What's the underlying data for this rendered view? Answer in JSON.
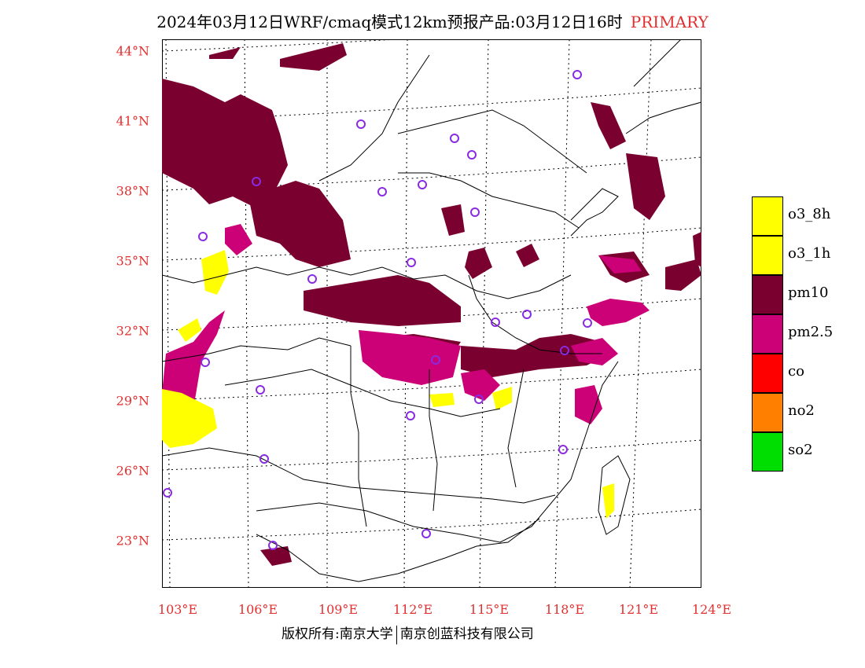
{
  "title": {
    "main": "2024年03月12日WRF/cmaq模式12km预报产品:03月12日16时",
    "product": "PRIMARY"
  },
  "lat_labels": [
    "44°N",
    "41°N",
    "38°N",
    "35°N",
    "32°N",
    "29°N",
    "26°N",
    "23°N"
  ],
  "lon_labels": [
    "103°E",
    "106°E",
    "109°E",
    "112°E",
    "115°E",
    "118°E",
    "121°E",
    "124°E"
  ],
  "legend": [
    {
      "label": "o3_8h",
      "color": "#ffff00"
    },
    {
      "label": "o3_1h",
      "color": "#ffff00"
    },
    {
      "label": "pm10",
      "color": "#7a0030"
    },
    {
      "label": "pm2.5",
      "color": "#cc0077"
    },
    {
      "label": "co",
      "color": "#ff0000"
    },
    {
      "label": "no2",
      "color": "#ff8000"
    },
    {
      "label": "so2",
      "color": "#00dd00"
    }
  ],
  "footer": {
    "left": "版权所有:南京大学",
    "right": "南京创蓝科技有限公司"
  },
  "colors": {
    "pm10": "#7a0030",
    "pm25": "#cc0077",
    "o3": "#ffff00",
    "station": "#8a2be2",
    "axis_label": "#e03030"
  }
}
